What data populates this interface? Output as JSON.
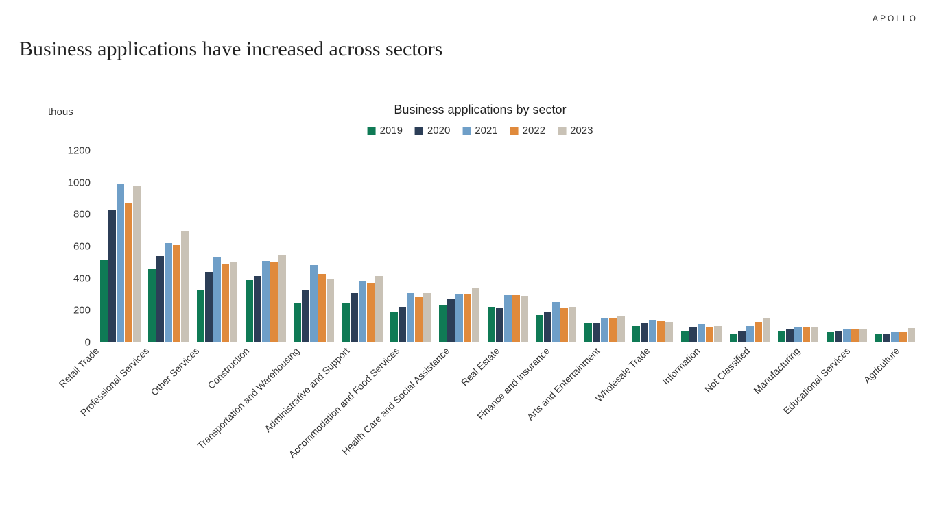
{
  "brand": "APOLLO",
  "page_title": "Business applications have increased across sectors",
  "chart": {
    "type": "grouped-bar",
    "subtitle": "Business applications by sector",
    "y_unit_label": "thous",
    "ylim": [
      0,
      1200
    ],
    "ytick_step": 200,
    "yticks": [
      "0",
      "200",
      "400",
      "600",
      "800",
      "1000",
      "1200"
    ],
    "background_color": "#ffffff",
    "axis_color": "#888888",
    "tick_fontsize": 15,
    "title_fontsize": 30,
    "subtitle_fontsize": 18,
    "legend_fontsize": 15,
    "xlabel_fontsize": 14,
    "xlabel_rotation_deg": -45,
    "brand_fontsize": 12,
    "series": [
      {
        "label": "2019",
        "color": "#0f7a55"
      },
      {
        "label": "2020",
        "color": "#2c3e57"
      },
      {
        "label": "2021",
        "color": "#6f9fc8"
      },
      {
        "label": "2022",
        "color": "#e08a3c"
      },
      {
        "label": "2023",
        "color": "#c9c2b6"
      }
    ],
    "categories": [
      "Retail Trade",
      "Professional Services",
      "Other Services",
      "Construction",
      "Transportation and Warehousing",
      "Administrative and Support",
      "Accommodation and Food Services",
      "Health Care and Social Assistance",
      "Real Estate",
      "Finance and Insurance",
      "Arts and Entertainment",
      "Wholesale Trade",
      "Information",
      "Not Classified",
      "Manufacturing",
      "Educational Services",
      "Agriculture"
    ],
    "values": [
      [
        520,
        830,
        990,
        870,
        980
      ],
      [
        460,
        540,
        620,
        615,
        695
      ],
      [
        330,
        440,
        535,
        490,
        500
      ],
      [
        390,
        415,
        510,
        505,
        550
      ],
      [
        245,
        330,
        485,
        430,
        400
      ],
      [
        245,
        310,
        385,
        375,
        415
      ],
      [
        190,
        225,
        310,
        285,
        310
      ],
      [
        230,
        275,
        305,
        305,
        340
      ],
      [
        225,
        215,
        295,
        295,
        290
      ],
      [
        170,
        195,
        255,
        220,
        225
      ],
      [
        120,
        125,
        155,
        150,
        165
      ],
      [
        105,
        120,
        140,
        135,
        130
      ],
      [
        75,
        100,
        115,
        100,
        105
      ],
      [
        55,
        70,
        105,
        130,
        150
      ],
      [
        70,
        85,
        95,
        95,
        95
      ],
      [
        65,
        75,
        85,
        80,
        85
      ],
      [
        50,
        55,
        65,
        65,
        90
      ]
    ]
  }
}
